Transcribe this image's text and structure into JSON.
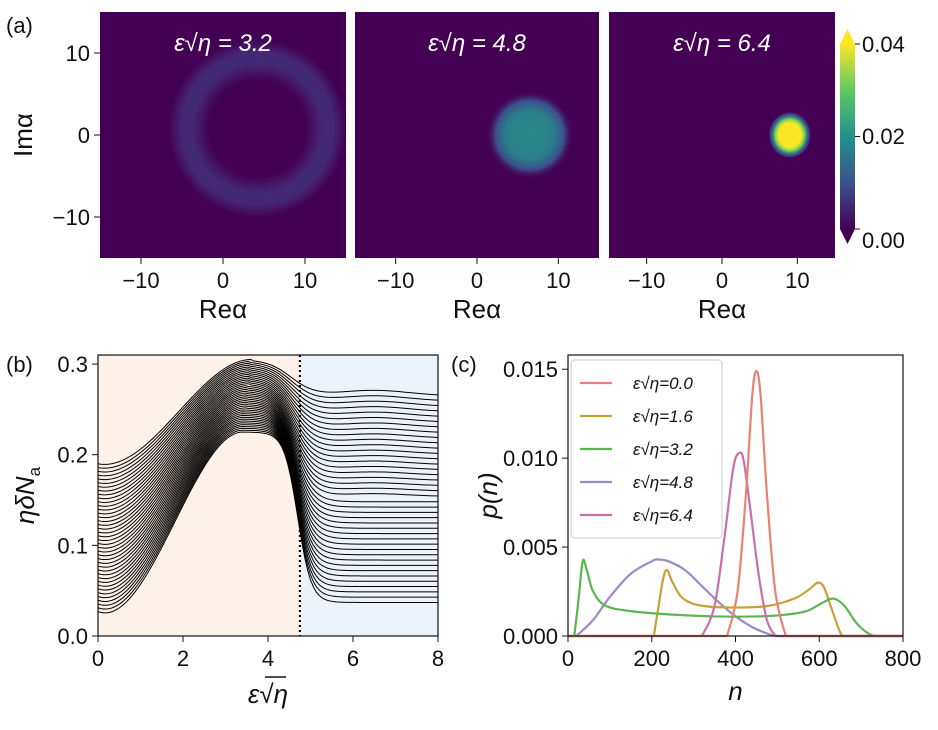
{
  "chart_data": [
    {
      "panel": "(a)",
      "type": "heatmap",
      "ylabel": "Imα",
      "xlabel": "Reα",
      "xticks": [
        -10,
        0,
        10
      ],
      "yticks": [
        10,
        0,
        -10
      ],
      "xlim": [
        -15,
        15
      ],
      "ylim": [
        -15,
        15
      ],
      "colormap": "viridis",
      "colorbar": {
        "ticks": [
          "0.04",
          "0.02",
          "0.00"
        ],
        "min": 0.0,
        "max": 0.04
      },
      "subplots": [
        {
          "title": "ε√η = 3.2",
          "shape": "ring",
          "center_x": 4.2,
          "center_y": 0.8,
          "radius": 7.2,
          "peak": 0.011
        },
        {
          "title": "ε√η = 4.8",
          "shape": "blob",
          "center_x": 6.5,
          "center_y": 0.0,
          "radius": 4.0,
          "peak": 0.021
        },
        {
          "title": "ε√η = 6.4",
          "shape": "spot",
          "center_x": 9.0,
          "center_y": 0.0,
          "radius": 2.2,
          "peak": 0.041
        }
      ]
    },
    {
      "panel": "(b)",
      "type": "line",
      "xlabel": "ε√η",
      "ylabel": "ηδN",
      "ylabel_sub": "a",
      "xlim": [
        0,
        8
      ],
      "ylim": [
        0,
        0.31
      ],
      "xticks": [
        "0",
        "2",
        "4",
        "6",
        "8"
      ],
      "yticks": [
        "0.0",
        "0.1",
        "0.2",
        "0.3"
      ],
      "threshold_x": 4.75,
      "region_colors": [
        "#fdf1ea",
        "#edf3fa"
      ],
      "family": {
        "count": 40,
        "top_start": 0.19,
        "bottom_start": 0.027,
        "top_plateau": 0.265,
        "bottom_plateau": 0.037
      }
    },
    {
      "panel": "(c)",
      "type": "line",
      "xlabel": "n",
      "ylabel": "p(n)",
      "xlim": [
        0,
        800
      ],
      "ylim": [
        0,
        0.0158
      ],
      "xticks": [
        "0",
        "200",
        "400",
        "600",
        "800"
      ],
      "yticks": [
        "0.000",
        "0.005",
        "0.010",
        "0.015"
      ],
      "series": [
        {
          "name": "ε√η=0.0",
          "color": "#ea8274",
          "points": [
            [
              380,
              0
            ],
            [
              405,
              0.0025
            ],
            [
              425,
              0.008
            ],
            [
              440,
              0.0135
            ],
            [
              450,
              0.0149
            ],
            [
              460,
              0.0135
            ],
            [
              475,
              0.008
            ],
            [
              495,
              0.0025
            ],
            [
              520,
              0
            ]
          ]
        },
        {
          "name": "ε√η=1.6",
          "color": "#c9a037",
          "points": [
            [
              205,
              0
            ],
            [
              215,
              0.0015
            ],
            [
              228,
              0.0033
            ],
            [
              237,
              0.0037
            ],
            [
              250,
              0.003
            ],
            [
              275,
              0.0021
            ],
            [
              320,
              0.0017
            ],
            [
              400,
              0.0016
            ],
            [
              480,
              0.0017
            ],
            [
              540,
              0.0021
            ],
            [
              575,
              0.0026
            ],
            [
              597,
              0.003
            ],
            [
              612,
              0.0027
            ],
            [
              630,
              0.0015
            ],
            [
              650,
              0.0002
            ],
            [
              660,
              0
            ]
          ]
        },
        {
          "name": "ε√η=3.2",
          "color": "#5bb553",
          "points": [
            [
              15,
              0
            ],
            [
              25,
              0.002
            ],
            [
              35,
              0.0042
            ],
            [
              45,
              0.0037
            ],
            [
              60,
              0.0025
            ],
            [
              90,
              0.0017
            ],
            [
              150,
              0.0014
            ],
            [
              250,
              0.0012
            ],
            [
              350,
              0.0011
            ],
            [
              450,
              0.0011
            ],
            [
              520,
              0.0012
            ],
            [
              570,
              0.0014
            ],
            [
              610,
              0.0019
            ],
            [
              635,
              0.0021
            ],
            [
              660,
              0.0017
            ],
            [
              690,
              0.0007
            ],
            [
              720,
              0.0001
            ],
            [
              740,
              0
            ]
          ]
        },
        {
          "name": "ε√η=4.8",
          "color": "#9b8bc7",
          "points": [
            [
              20,
              0
            ],
            [
              60,
              0.0009
            ],
            [
              100,
              0.0022
            ],
            [
              150,
              0.0035
            ],
            [
              200,
              0.0042
            ],
            [
              215,
              0.0043
            ],
            [
              240,
              0.0042
            ],
            [
              280,
              0.0037
            ],
            [
              320,
              0.0028
            ],
            [
              360,
              0.0019
            ],
            [
              400,
              0.0011
            ],
            [
              440,
              0.0005
            ],
            [
              480,
              0.0001
            ],
            [
              500,
              0
            ]
          ]
        },
        {
          "name": "ε√η=6.4",
          "color": "#c86fb0",
          "points": [
            [
              320,
              0
            ],
            [
              350,
              0.0017
            ],
            [
              375,
              0.0058
            ],
            [
              395,
              0.0095
            ],
            [
              410,
              0.0103
            ],
            [
              420,
              0.0098
            ],
            [
              435,
              0.0072
            ],
            [
              455,
              0.0035
            ],
            [
              475,
              0.0009
            ],
            [
              495,
              0
            ]
          ]
        }
      ]
    }
  ]
}
